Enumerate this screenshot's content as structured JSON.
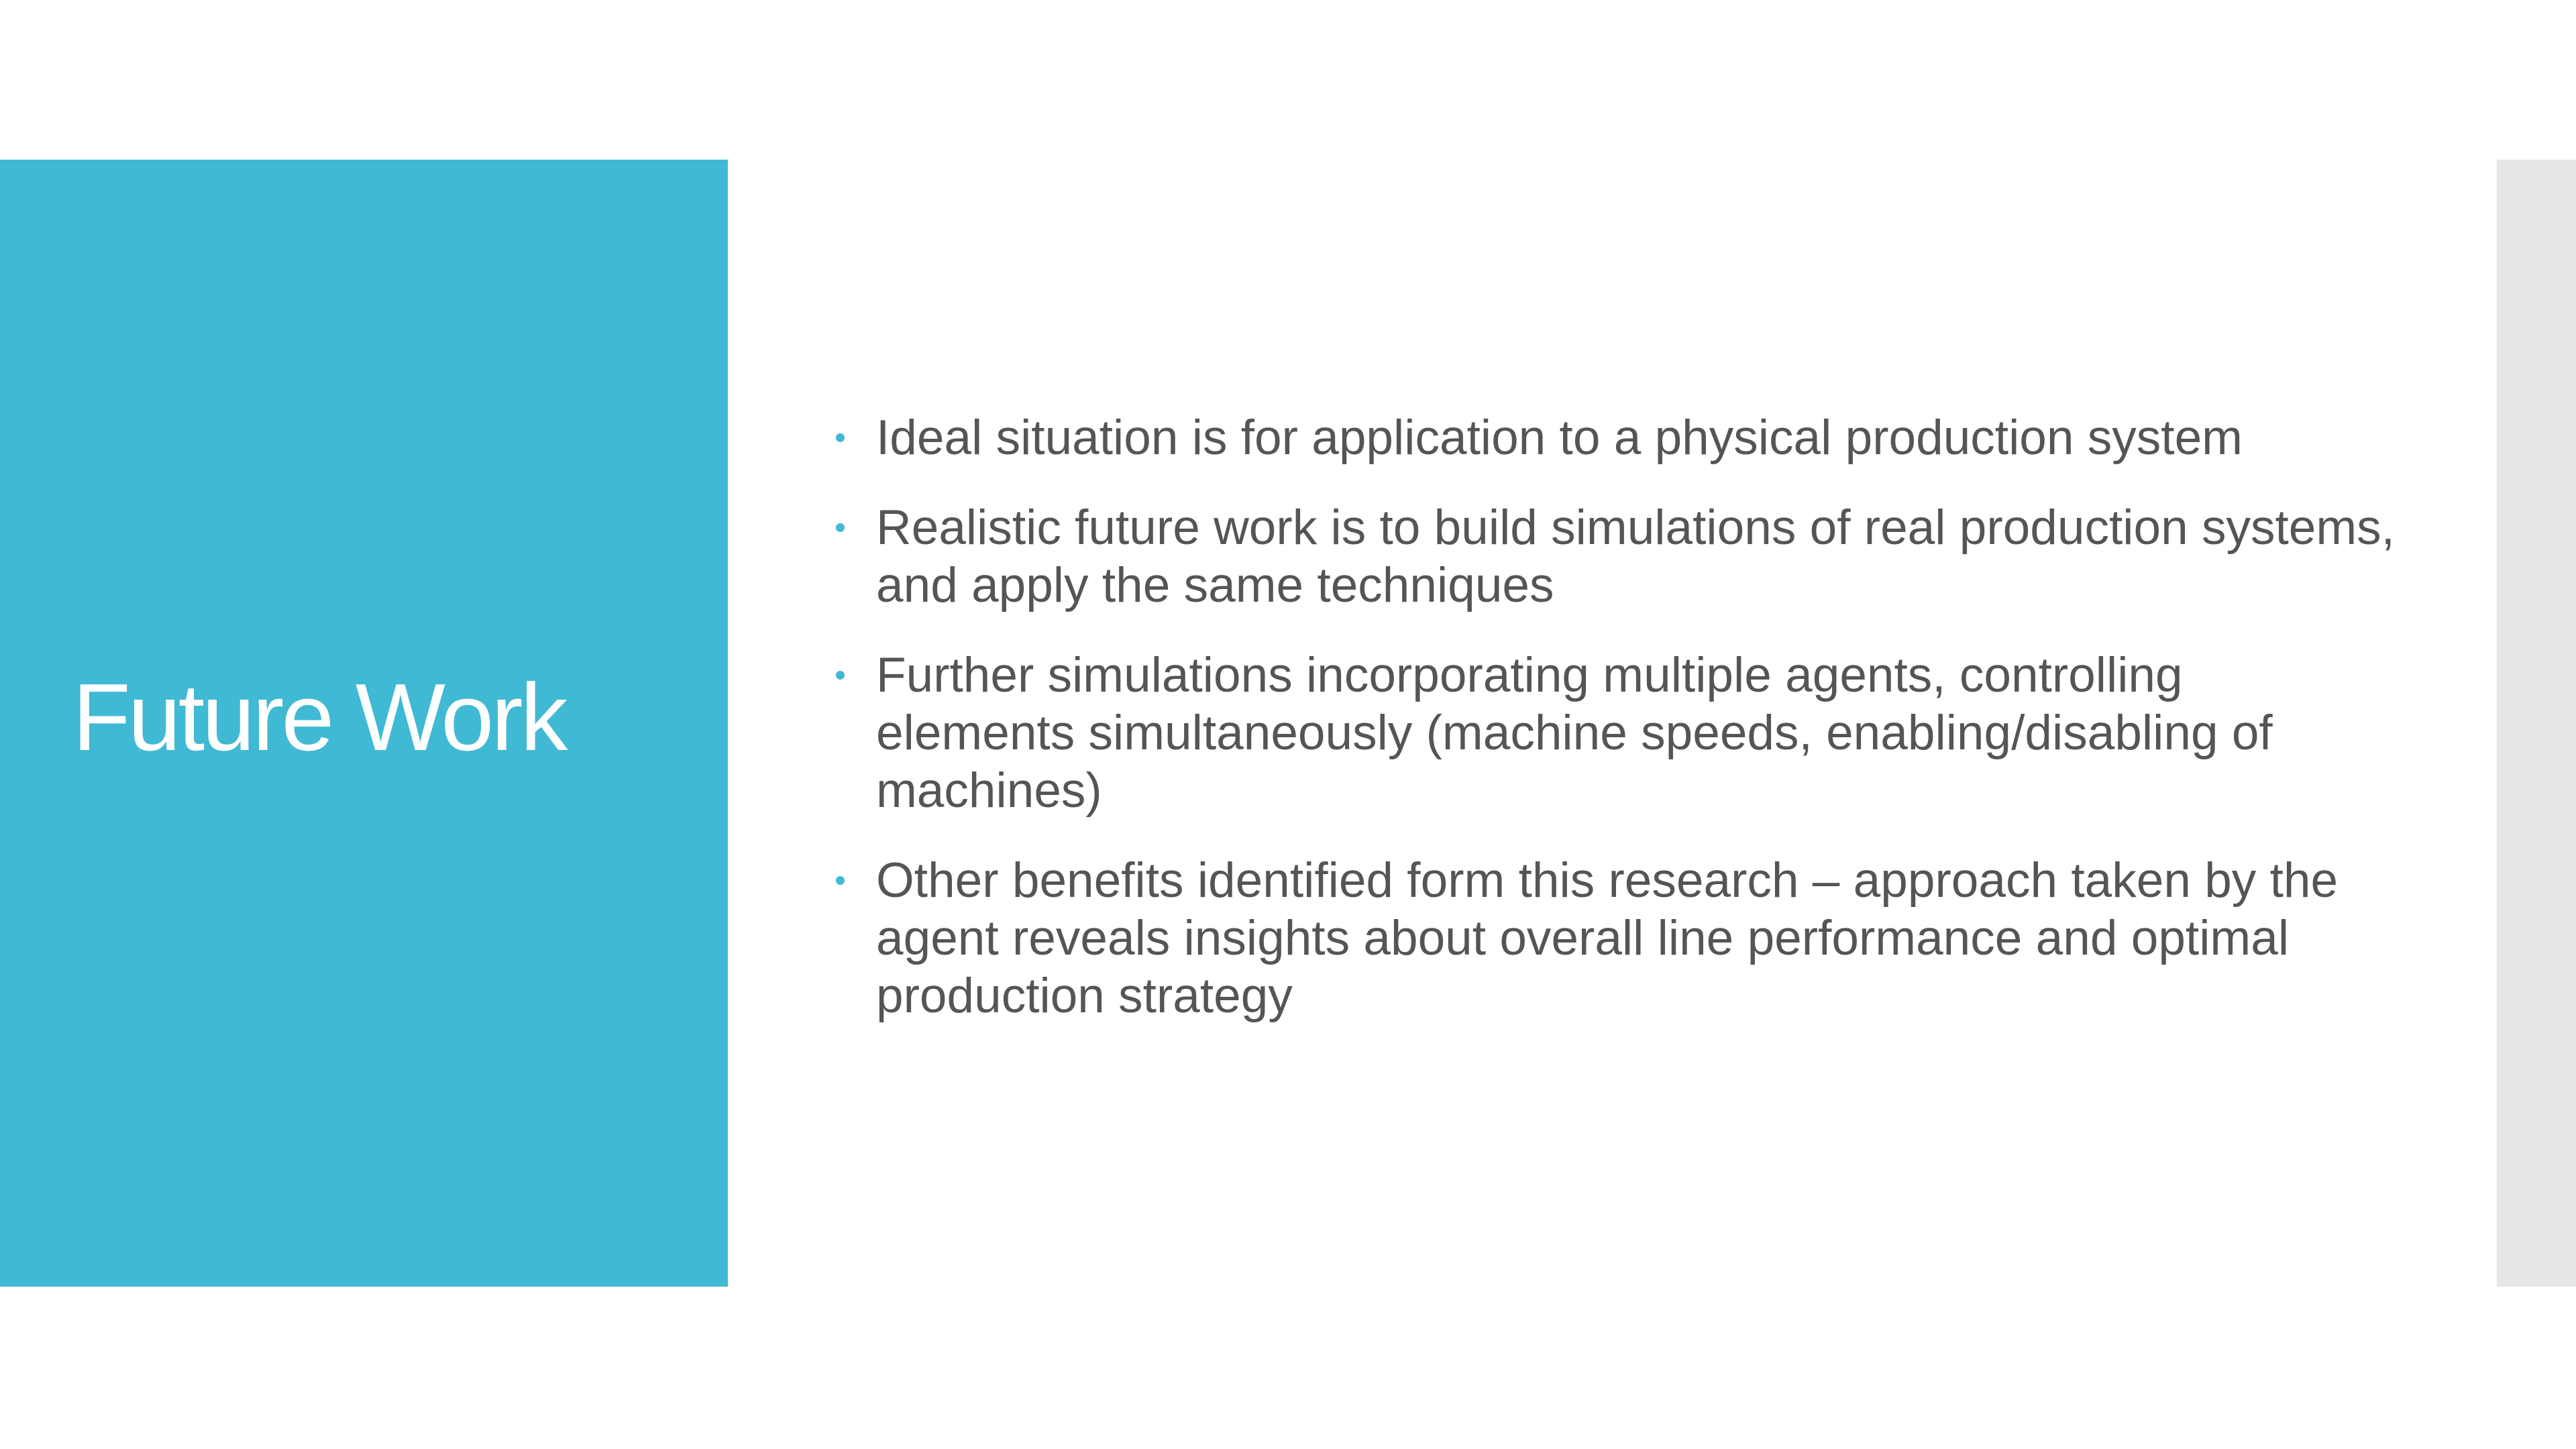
{
  "slide": {
    "title": "Future Work",
    "bullets": [
      "Ideal situation is for application to a physical production system",
      "Realistic future work is to build simulations of real production systems, and apply the same techniques",
      "Further simulations incorporating multiple agents, controlling elements simultaneously (machine speeds, enabling/disabling of machines)",
      "Other benefits identified form this research – approach taken by the agent reveals insights about overall line performance and optimal production strategy"
    ]
  },
  "colors": {
    "accent": "#40b9d4",
    "body_text": "#555555",
    "side_strip": "#e6e6e6",
    "background": "#ffffff"
  },
  "icons": {
    "bullet": "bullet-dot-icon"
  }
}
